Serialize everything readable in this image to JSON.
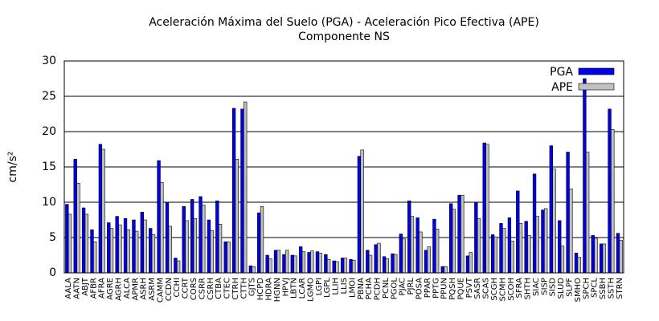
{
  "chart_data": {
    "type": "bar",
    "title": "Aceleración Máxima del Suelo (PGA) -  Aceleración Pico Efectiva (APE)",
    "subtitle": "Componente NS",
    "y_label": "cm/s²",
    "categories": [
      "AALA",
      "AATN",
      "ABJT",
      "AFBR",
      "AFRA",
      "AGRE",
      "AGRH",
      "ALCA",
      "APMR",
      "ASRH",
      "ASRM",
      "CAMM",
      "CCDN",
      "CCHI",
      "CCRT",
      "CORS",
      "CSRR",
      "CSRH",
      "CTBA",
      "CTEC",
      "CTRH",
      "CTTH",
      "GJTS",
      "HCPD",
      "HDRA",
      "HGNN",
      "HPVJ",
      "LBTN",
      "LCAR",
      "LGMO",
      "LGPI",
      "LGPL",
      "LLIH",
      "LLIS",
      "LMOI",
      "PBNA",
      "PCHA",
      "PCDH",
      "PCNL",
      "PGOL",
      "PJAC",
      "PJRL",
      "POSA",
      "PPAR",
      "PPTG",
      "PPUN",
      "PQSH",
      "PQUE",
      "PSVT",
      "SASR",
      "SCAS",
      "SCGH",
      "SCMH",
      "SCOH",
      "SFRA",
      "SHTH",
      "SIAC",
      "SISP",
      "SISD",
      "SLUD",
      "SLPF",
      "SMHO",
      "SPCH",
      "SPCL",
      "SSBH",
      "SSTH",
      "STRN"
    ],
    "series": [
      {
        "name": "PGA",
        "color": "#0000ee",
        "values": [
          9.7,
          16.1,
          9.2,
          6.1,
          18.2,
          7.1,
          8.0,
          7.7,
          7.5,
          8.6,
          6.3,
          15.9,
          10.0,
          2.1,
          9.4,
          10.4,
          10.8,
          7.5,
          10.2,
          4.4,
          23.3,
          23.2,
          1.0,
          8.5,
          2.5,
          3.2,
          2.6,
          2.5,
          3.7,
          2.9,
          3.0,
          2.6,
          1.7,
          2.1,
          1.9,
          16.5,
          3.2,
          4.0,
          2.3,
          2.7,
          5.5,
          10.2,
          7.8,
          3.2,
          7.6,
          0.9,
          9.8,
          11.0,
          2.4,
          10.0,
          18.4,
          5.4,
          7.0,
          7.8,
          11.6,
          7.3,
          14.0,
          8.9,
          18.0,
          7.4,
          17.1,
          2.8,
          27.5,
          5.3,
          4.1,
          23.2,
          5.6
        ]
      },
      {
        "name": "APE",
        "color": "#c0c0c0",
        "values": [
          8.3,
          12.7,
          8.3,
          4.4,
          17.5,
          6.3,
          6.8,
          6.1,
          5.9,
          7.5,
          5.4,
          12.8,
          6.6,
          1.7,
          7.4,
          7.7,
          9.6,
          6.0,
          6.9,
          4.4,
          16.1,
          24.2,
          0.9,
          9.4,
          2.0,
          3.2,
          3.2,
          2.4,
          3.0,
          3.1,
          2.8,
          1.9,
          1.6,
          2.1,
          1.8,
          17.4,
          2.5,
          4.2,
          2.0,
          2.6,
          4.8,
          8.0,
          5.8,
          3.7,
          6.2,
          0.9,
          9.0,
          11.0,
          2.9,
          7.7,
          18.2,
          5.1,
          6.3,
          4.5,
          7.0,
          5.3,
          8.0,
          9.1,
          14.7,
          3.8,
          11.9,
          2.2,
          17.1,
          4.9,
          4.1,
          20.3,
          4.6
        ]
      }
    ],
    "ylim": [
      0,
      30
    ],
    "yticks": [
      0,
      5,
      10,
      15,
      20,
      25,
      30
    ],
    "grid": true,
    "legend": "top-right"
  }
}
